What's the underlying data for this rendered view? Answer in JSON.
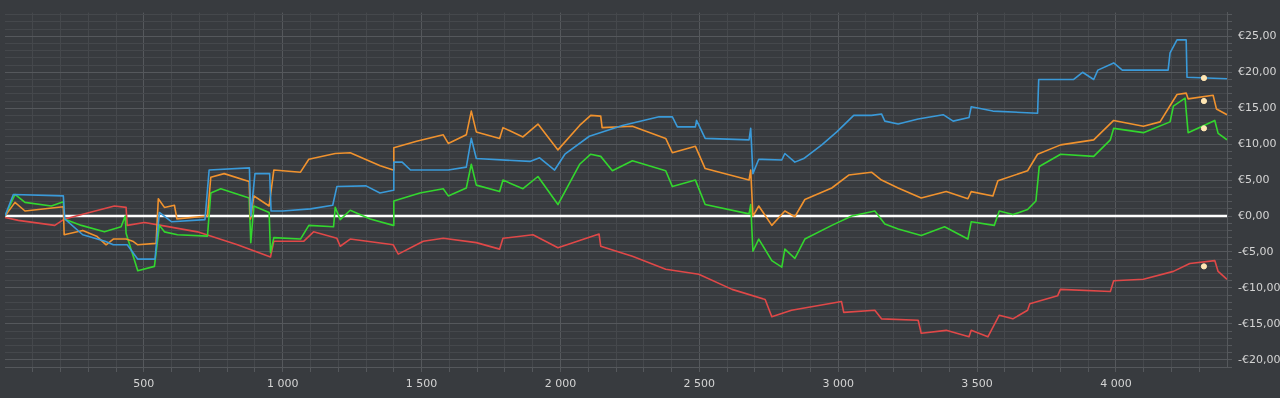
{
  "chart_data": {
    "type": "line",
    "xlim": [
      0,
      4400
    ],
    "ylim": [
      -21,
      28.3
    ],
    "grid": true,
    "xticks": [
      {
        "value": 100,
        "label": null
      },
      {
        "value": 200,
        "label": null
      },
      {
        "value": 300,
        "label": null
      },
      {
        "value": 400,
        "label": null
      },
      {
        "value": 500,
        "label": "500"
      },
      {
        "value": 600,
        "label": null
      },
      {
        "value": 700,
        "label": null
      },
      {
        "value": 800,
        "label": null
      },
      {
        "value": 900,
        "label": null
      },
      {
        "value": 1000,
        "label": "1 000"
      },
      {
        "value": 1100,
        "label": null
      },
      {
        "value": 1200,
        "label": null
      },
      {
        "value": 1300,
        "label": null
      },
      {
        "value": 1400,
        "label": null
      },
      {
        "value": 1500,
        "label": "1 500"
      },
      {
        "value": 1600,
        "label": null
      },
      {
        "value": 1700,
        "label": null
      },
      {
        "value": 1800,
        "label": null
      },
      {
        "value": 1900,
        "label": null
      },
      {
        "value": 2000,
        "label": "2 000"
      },
      {
        "value": 2100,
        "label": null
      },
      {
        "value": 2200,
        "label": null
      },
      {
        "value": 2300,
        "label": null
      },
      {
        "value": 2400,
        "label": null
      },
      {
        "value": 2500,
        "label": "2 500"
      },
      {
        "value": 2600,
        "label": null
      },
      {
        "value": 2700,
        "label": null
      },
      {
        "value": 2800,
        "label": null
      },
      {
        "value": 2900,
        "label": null
      },
      {
        "value": 3000,
        "label": "3 000"
      },
      {
        "value": 3100,
        "label": null
      },
      {
        "value": 3200,
        "label": null
      },
      {
        "value": 3300,
        "label": null
      },
      {
        "value": 3400,
        "label": null
      },
      {
        "value": 3500,
        "label": "3 500"
      },
      {
        "value": 3600,
        "label": null
      },
      {
        "value": 3700,
        "label": null
      },
      {
        "value": 3800,
        "label": null
      },
      {
        "value": 3900,
        "label": null
      },
      {
        "value": 4000,
        "label": "4 000"
      },
      {
        "value": 4100,
        "label": null
      },
      {
        "value": 4200,
        "label": null
      },
      {
        "value": 4300,
        "label": null
      }
    ],
    "yticks": [
      {
        "value": -21,
        "label": null
      },
      {
        "value": -20,
        "label": "-€20,00"
      },
      {
        "value": -19,
        "label": null
      },
      {
        "value": -18,
        "label": null
      },
      {
        "value": -17,
        "label": null
      },
      {
        "value": -16,
        "label": null
      },
      {
        "value": -15,
        "label": "-€15,00"
      },
      {
        "value": -14,
        "label": null
      },
      {
        "value": -13,
        "label": null
      },
      {
        "value": -12,
        "label": null
      },
      {
        "value": -11,
        "label": null
      },
      {
        "value": -10,
        "label": "-€10,00"
      },
      {
        "value": -9,
        "label": null
      },
      {
        "value": -8,
        "label": null
      },
      {
        "value": -7,
        "label": null
      },
      {
        "value": -6,
        "label": null
      },
      {
        "value": -5,
        "label": "-€5,00"
      },
      {
        "value": -4,
        "label": null
      },
      {
        "value": -3,
        "label": null
      },
      {
        "value": -2,
        "label": null
      },
      {
        "value": -1,
        "label": null
      },
      {
        "value": 0,
        "label": "€0,00"
      },
      {
        "value": 1,
        "label": null
      },
      {
        "value": 2,
        "label": null
      },
      {
        "value": 3,
        "label": null
      },
      {
        "value": 4,
        "label": null
      },
      {
        "value": 5,
        "label": "€5,00"
      },
      {
        "value": 6,
        "label": null
      },
      {
        "value": 7,
        "label": null
      },
      {
        "value": 8,
        "label": null
      },
      {
        "value": 9,
        "label": null
      },
      {
        "value": 10,
        "label": "€10,00"
      },
      {
        "value": 11,
        "label": null
      },
      {
        "value": 12,
        "label": null
      },
      {
        "value": 13,
        "label": null
      },
      {
        "value": 14,
        "label": null
      },
      {
        "value": 15,
        "label": "€15,00"
      },
      {
        "value": 16,
        "label": null
      },
      {
        "value": 17,
        "label": null
      },
      {
        "value": 18,
        "label": null
      },
      {
        "value": 19,
        "label": null
      },
      {
        "value": 20,
        "label": "€20,00"
      },
      {
        "value": 21,
        "label": null
      },
      {
        "value": 22,
        "label": null
      },
      {
        "value": 23,
        "label": null
      },
      {
        "value": 24,
        "label": null
      },
      {
        "value": 25,
        "label": "€25,00"
      },
      {
        "value": 26,
        "label": null
      },
      {
        "value": 27,
        "label": null
      },
      {
        "value": 28,
        "label": null
      }
    ],
    "ref_lines": [
      {
        "axis": "y",
        "value": 0,
        "color": "#ffffff"
      }
    ],
    "series": [
      {
        "color": "#3a9ad9",
        "x": [
          0,
          30,
          210,
          215,
          280,
          360,
          390,
          440,
          478,
          540,
          556,
          600,
          720,
          735,
          880,
          885,
          900,
          953,
          958,
          1000,
          1100,
          1180,
          1195,
          1300,
          1350,
          1398,
          1400,
          1430,
          1460,
          1596,
          1661,
          1679,
          1697,
          1890,
          1925,
          1979,
          2016,
          2104,
          2223,
          2355,
          2403,
          2421,
          2486,
          2490,
          2521,
          2679,
          2685,
          2693,
          2714,
          2797,
          2808,
          2844,
          2876,
          2941,
          2995,
          3056,
          3120,
          3156,
          3168,
          3216,
          3288,
          3378,
          3414,
          3471,
          3479,
          3557,
          3718,
          3722,
          3848,
          3880,
          3920,
          3935,
          3992,
          4023,
          4188,
          4195,
          4220,
          4253,
          4256,
          4400
        ],
        "values": [
          0,
          3.0,
          2.8,
          -0.4,
          -2.6,
          -3.5,
          -4.0,
          -4.0,
          -6.0,
          -6.0,
          0.5,
          -0.8,
          -0.5,
          6.4,
          6.7,
          0,
          5.9,
          5.9,
          0.7,
          0.7,
          1.0,
          1.5,
          4.1,
          4.2,
          3.2,
          3.6,
          7.5,
          7.5,
          6.4,
          6.4,
          6.8,
          10.8,
          8.0,
          7.6,
          8.1,
          6.4,
          8.6,
          11.1,
          12.6,
          13.8,
          13.8,
          12.4,
          12.4,
          13.3,
          10.8,
          10.6,
          12.2,
          5.9,
          7.9,
          7.8,
          8.7,
          7.5,
          8.0,
          9.9,
          11.7,
          14.0,
          14.0,
          14.2,
          13.2,
          12.8,
          13.5,
          14.1,
          13.2,
          13.7,
          15.2,
          14.6,
          14.3,
          19.0,
          19.0,
          20.0,
          19.0,
          20.3,
          21.3,
          20.3,
          20.3,
          22.7,
          24.5,
          24.5,
          19.3,
          19.1
        ]
      },
      {
        "color": "#f0922e",
        "x": [
          0,
          36,
          72,
          210,
          213,
          280,
          330,
          364,
          390,
          436,
          460,
          478,
          544,
          552,
          574,
          610,
          619,
          729,
          741,
          789,
          879,
          884,
          896,
          951,
          968,
          1064,
          1094,
          1189,
          1243,
          1351,
          1398,
          1400,
          1482,
          1578,
          1596,
          1661,
          1679,
          1697,
          1781,
          1793,
          1865,
          1919,
          1991,
          2069,
          2109,
          2145,
          2150,
          2259,
          2379,
          2403,
          2486,
          2521,
          2679,
          2685,
          2693,
          2714,
          2761,
          2808,
          2844,
          2880,
          2977,
          3038,
          3120,
          3156,
          3216,
          3299,
          3389,
          3467,
          3479,
          3557,
          3575,
          3682,
          3718,
          3801,
          3920,
          3992,
          4099,
          4159,
          4202,
          4220,
          4253,
          4260,
          4350,
          4362,
          4400
        ],
        "values": [
          0,
          1.9,
          0.7,
          1.3,
          -2.6,
          -2.0,
          -2.8,
          -4.0,
          -3.2,
          -3.2,
          -3.5,
          -4.0,
          -3.8,
          2.4,
          1.2,
          1.5,
          -0.4,
          0,
          5.4,
          5.9,
          4.8,
          -0.4,
          2.8,
          1.4,
          6.4,
          6.1,
          7.9,
          8.7,
          8.8,
          7.0,
          6.4,
          9.5,
          10.4,
          11.3,
          10.1,
          11.3,
          14.6,
          11.7,
          10.8,
          12.3,
          11.0,
          12.8,
          9.2,
          12.6,
          14.0,
          13.9,
          12.3,
          12.5,
          10.8,
          8.8,
          9.7,
          6.6,
          5.0,
          6.4,
          0,
          1.4,
          -1.3,
          0.7,
          -0.1,
          2.3,
          3.9,
          5.7,
          6.1,
          5.0,
          3.9,
          2.5,
          3.4,
          2.4,
          3.4,
          2.8,
          4.9,
          6.3,
          8.6,
          9.9,
          10.6,
          13.3,
          12.5,
          13.1,
          15.8,
          16.9,
          17.1,
          16.3,
          16.8,
          14.9,
          14.1
        ]
      },
      {
        "color": "#33d62e",
        "x": [
          0,
          36,
          72,
          167,
          210,
          213,
          275,
          358,
          418,
          433,
          436,
          478,
          538,
          556,
          574,
          621,
          729,
          741,
          777,
          879,
          885,
          896,
          951,
          956,
          968,
          1064,
          1094,
          1183,
          1189,
          1207,
          1243,
          1315,
          1398,
          1400,
          1494,
          1578,
          1596,
          1661,
          1679,
          1697,
          1781,
          1793,
          1865,
          1919,
          1991,
          2069,
          2109,
          2145,
          2187,
          2259,
          2379,
          2403,
          2486,
          2521,
          2679,
          2685,
          2693,
          2714,
          2761,
          2797,
          2808,
          2844,
          2880,
          2977,
          3049,
          3132,
          3168,
          3216,
          3299,
          3383,
          3467,
          3479,
          3562,
          3580,
          3629,
          3682,
          3712,
          3724,
          3801,
          3920,
          3980,
          3992,
          4099,
          4195,
          4207,
          4249,
          4260,
          4356,
          4368,
          4400
        ],
        "values": [
          0,
          3.0,
          1.9,
          1.4,
          2.0,
          -0.4,
          -1.3,
          -2.2,
          -1.5,
          0,
          -2.4,
          -7.6,
          -7.0,
          -1.3,
          -2.2,
          -2.6,
          -2.8,
          3.2,
          3.8,
          2.5,
          -3.7,
          1.4,
          0.5,
          -5.1,
          -3.0,
          -3.2,
          -1.3,
          -1.5,
          1.2,
          -0.5,
          0.8,
          -0.4,
          -1.3,
          2.1,
          3.2,
          3.8,
          2.8,
          3.9,
          7.2,
          4.3,
          3.4,
          5.0,
          3.8,
          5.5,
          1.6,
          7.2,
          8.6,
          8.3,
          6.3,
          7.7,
          6.3,
          4.1,
          5.0,
          1.6,
          0.3,
          1.6,
          -4.9,
          -3.2,
          -6.2,
          -7.1,
          -4.6,
          -5.9,
          -3.2,
          -1.3,
          0,
          0.7,
          -1.1,
          -1.8,
          -2.7,
          -1.5,
          -3.2,
          -0.8,
          -1.3,
          0.7,
          0.2,
          0.9,
          2.1,
          6.9,
          8.6,
          8.3,
          10.6,
          12.2,
          11.6,
          13.1,
          15.3,
          16.4,
          11.6,
          13.3,
          11.5,
          10.6
        ]
      },
      {
        "color": "#e04848",
        "x": [
          0,
          48,
          179,
          215,
          335,
          394,
          436,
          440,
          502,
          562,
          693,
          837,
          956,
          968,
          1076,
          1111,
          1195,
          1207,
          1243,
          1398,
          1416,
          1506,
          1578,
          1697,
          1781,
          1793,
          1901,
          1991,
          2139,
          2145,
          2259,
          2379,
          2498,
          2618,
          2737,
          2761,
          2832,
          3012,
          3020,
          3132,
          3156,
          3288,
          3299,
          3389,
          3471,
          3479,
          3539,
          3580,
          3629,
          3682,
          3690,
          3790,
          3800,
          3980,
          3992,
          4099,
          4207,
          4266,
          4356,
          4368,
          4400
        ],
        "values": [
          -0.2,
          -0.6,
          -1.3,
          -0.4,
          0.8,
          1.4,
          1.2,
          -1.3,
          -0.9,
          -1.3,
          -2.2,
          -4.0,
          -5.7,
          -3.5,
          -3.5,
          -2.2,
          -3.1,
          -4.2,
          -3.2,
          -4.0,
          -5.3,
          -3.5,
          -3.1,
          -3.7,
          -4.6,
          -3.1,
          -2.6,
          -4.4,
          -2.5,
          -4.2,
          -5.6,
          -7.4,
          -8.1,
          -10.2,
          -11.6,
          -14.0,
          -13.1,
          -11.9,
          -13.4,
          -13.1,
          -14.3,
          -14.5,
          -16.3,
          -15.9,
          -16.8,
          -15.9,
          -16.8,
          -13.8,
          -14.3,
          -13.1,
          -12.2,
          -11.1,
          -10.2,
          -10.5,
          -9.0,
          -8.8,
          -7.7,
          -6.6,
          -6.2,
          -7.7,
          -8.8
        ]
      },
      {
        "type": "scatter",
        "marker": "circle",
        "color": "#ffe6b3",
        "x": [
          4317,
          4317,
          4317,
          4317
        ],
        "values": [
          19.2,
          16.0,
          12.2,
          -7.0
        ]
      }
    ]
  }
}
